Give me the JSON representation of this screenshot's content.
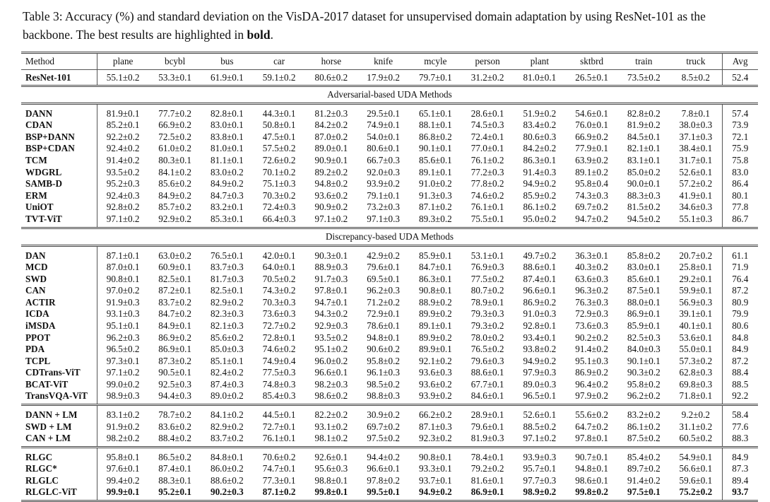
{
  "caption": {
    "text": "Table 3: Accuracy (%) and standard deviation on the VisDA-2017 dataset for unsupervised domain adaptation by using ResNet-101 as the backbone. The best results are highlighted in ",
    "bold_word": "bold",
    "end": "."
  },
  "table": {
    "headers": [
      "Method",
      "plane",
      "bcybl",
      "bus",
      "car",
      "horse",
      "knife",
      "mcyle",
      "person",
      "plant",
      "sktbrd",
      "train",
      "truck",
      "Avg"
    ],
    "groups": [
      {
        "title": null,
        "rows": [
          {
            "method": "ResNet-101",
            "values": [
              "55.1±0.2",
              "53.3±0.1",
              "61.9±0.1",
              "59.1±0.2",
              "80.6±0.2",
              "17.9±0.2",
              "79.7±0.1",
              "31.2±0.2",
              "81.0±0.1",
              "26.5±0.1",
              "73.5±0.2",
              "8.5±0.2"
            ],
            "avg": "52.4"
          }
        ]
      },
      {
        "title": "Adversarial-based UDA Methods",
        "rows": [
          {
            "method": "DANN",
            "values": [
              "81.9±0.1",
              "77.7±0.2",
              "82.8±0.1",
              "44.3±0.1",
              "81.2±0.3",
              "29.5±0.1",
              "65.1±0.1",
              "28.6±0.1",
              "51.9±0.2",
              "54.6±0.1",
              "82.8±0.2",
              "7.8±0.1"
            ],
            "avg": "57.4"
          },
          {
            "method": "CDAN",
            "values": [
              "85.2±0.1",
              "66.9±0.2",
              "83.0±0.1",
              "50.8±0.1",
              "84.2±0.2",
              "74.9±0.1",
              "88.1±0.1",
              "74.5±0.3",
              "83.4±0.2",
              "76.0±0.1",
              "81.9±0.2",
              "38.0±0.3"
            ],
            "avg": "73.9"
          },
          {
            "method": "BSP+DANN",
            "values": [
              "92.2±0.2",
              "72.5±0.2",
              "83.8±0.1",
              "47.5±0.1",
              "87.0±0.2",
              "54.0±0.1",
              "86.8±0.2",
              "72.4±0.1",
              "80.6±0.3",
              "66.9±0.2",
              "84.5±0.1",
              "37.1±0.3"
            ],
            "avg": "72.1"
          },
          {
            "method": "BSP+CDAN",
            "values": [
              "92.4±0.2",
              "61.0±0.2",
              "81.0±0.1",
              "57.5±0.2",
              "89.0±0.1",
              "80.6±0.1",
              "90.1±0.1",
              "77.0±0.1",
              "84.2±0.2",
              "77.9±0.1",
              "82.1±0.1",
              "38.4±0.1"
            ],
            "avg": "75.9"
          },
          {
            "method": "TCM",
            "values": [
              "91.4±0.2",
              "80.3±0.1",
              "81.1±0.1",
              "72.6±0.2",
              "90.9±0.1",
              "66.7±0.3",
              "85.6±0.1",
              "76.1±0.2",
              "86.3±0.1",
              "63.9±0.2",
              "83.1±0.1",
              "31.7±0.1"
            ],
            "avg": "75.8"
          },
          {
            "method": "WDGRL",
            "values": [
              "93.5±0.2",
              "84.1±0.2",
              "83.0±0.2",
              "70.1±0.2",
              "89.2±0.2",
              "92.0±0.3",
              "89.1±0.1",
              "77.2±0.3",
              "91.4±0.3",
              "89.1±0.2",
              "85.0±0.2",
              "52.6±0.1"
            ],
            "avg": "83.0"
          },
          {
            "method": "SAMB-D",
            "values": [
              "95.2±0.3",
              "85.6±0.2",
              "84.9±0.2",
              "75.1±0.3",
              "94.8±0.2",
              "93.9±0.2",
              "91.0±0.2",
              "77.8±0.2",
              "94.9±0.2",
              "95.8±0.4",
              "90.0±0.1",
              "57.2±0.2"
            ],
            "avg": "86.4"
          },
          {
            "method": "ERM",
            "values": [
              "92.4±0.3",
              "84.9±0.2",
              "84.7±0.3",
              "70.3±0.2",
              "93.6±0.2",
              "79.1±0.1",
              "91.3±0.3",
              "74.6±0.2",
              "85.9±0.2",
              "74.3±0.3",
              "88.3±0.3",
              "41.9±0.1"
            ],
            "avg": "80.1"
          },
          {
            "method": "UniOT",
            "values": [
              "92.8±0.2",
              "85.7±0.2",
              "83.2±0.1",
              "72.4±0.3",
              "90.9±0.2",
              "73.2±0.3",
              "87.1±0.2",
              "76.1±0.1",
              "86.1±0.2",
              "69.7±0.2",
              "81.5±0.2",
              "34.6±0.3"
            ],
            "avg": "77.8"
          },
          {
            "method": "TVT-ViT",
            "values": [
              "97.1±0.2",
              "92.9±0.2",
              "85.3±0.1",
              "66.4±0.3",
              "97.1±0.2",
              "97.1±0.3",
              "89.3±0.2",
              "75.5±0.1",
              "95.0±0.2",
              "94.7±0.2",
              "94.5±0.2",
              "55.1±0.3"
            ],
            "avg": "86.7"
          }
        ]
      },
      {
        "title": "Discrepancy-based UDA Methods",
        "rows": [
          {
            "method": "DAN",
            "values": [
              "87.1±0.1",
              "63.0±0.2",
              "76.5±0.1",
              "42.0±0.1",
              "90.3±0.1",
              "42.9±0.2",
              "85.9±0.1",
              "53.1±0.1",
              "49.7±0.2",
              "36.3±0.1",
              "85.8±0.2",
              "20.7±0.2"
            ],
            "avg": "61.1"
          },
          {
            "method": "MCD",
            "values": [
              "87.0±0.1",
              "60.9±0.1",
              "83.7±0.3",
              "64.0±0.1",
              "88.9±0.3",
              "79.6±0.1",
              "84.7±0.1",
              "76.9±0.3",
              "88.6±0.1",
              "40.3±0.2",
              "83.0±0.1",
              "25.8±0.1"
            ],
            "avg": "71.9"
          },
          {
            "method": "SWD",
            "values": [
              "90.8±0.1",
              "82.5±0.1",
              "81.7±0.3",
              "70.5±0.2",
              "91.7±0.3",
              "69.5±0.1",
              "86.3±0.1",
              "77.5±0.2",
              "87.4±0.1",
              "63.6±0.3",
              "85.6±0.1",
              "29.2±0.1"
            ],
            "avg": "76.4"
          },
          {
            "method": "CAN",
            "values": [
              "97.0±0.2",
              "87.2±0.1",
              "82.5±0.1",
              "74.3±0.2",
              "97.8±0.1",
              "96.2±0.3",
              "90.8±0.1",
              "80.7±0.2",
              "96.6±0.1",
              "96.3±0.2",
              "87.5±0.1",
              "59.9±0.1"
            ],
            "avg": "87.2"
          },
          {
            "method": "ACTIR",
            "values": [
              "91.9±0.3",
              "83.7±0.2",
              "82.9±0.2",
              "70.3±0.3",
              "94.7±0.1",
              "71.2±0.2",
              "88.9±0.2",
              "78.9±0.1",
              "86.9±0.2",
              "76.3±0.3",
              "88.0±0.1",
              "56.9±0.3"
            ],
            "avg": "80.9"
          },
          {
            "method": "ICDA",
            "values": [
              "93.1±0.3",
              "84.7±0.2",
              "82.3±0.3",
              "73.6±0.3",
              "94.3±0.2",
              "72.9±0.1",
              "89.9±0.2",
              "79.3±0.3",
              "91.0±0.3",
              "72.9±0.3",
              "86.9±0.1",
              "39.1±0.1"
            ],
            "avg": "79.9"
          },
          {
            "method": "iMSDA",
            "values": [
              "95.1±0.1",
              "84.9±0.1",
              "82.1±0.3",
              "72.7±0.2",
              "92.9±0.3",
              "78.6±0.1",
              "89.1±0.1",
              "79.3±0.2",
              "92.8±0.1",
              "73.6±0.3",
              "85.9±0.1",
              "40.1±0.1"
            ],
            "avg": "80.6"
          },
          {
            "method": "PPOT",
            "values": [
              "96.2±0.3",
              "86.9±0.2",
              "85.6±0.2",
              "72.8±0.1",
              "93.5±0.2",
              "94.8±0.1",
              "89.9±0.2",
              "78.0±0.2",
              "93.4±0.1",
              "90.2±0.2",
              "82.5±0.3",
              "53.6±0.1"
            ],
            "avg": "84.8"
          },
          {
            "method": "PDA",
            "values": [
              "96.5±0.2",
              "86.9±0.1",
              "85.0±0.3",
              "74.6±0.2",
              "95.1±0.2",
              "90.6±0.2",
              "89.9±0.1",
              "76.5±0.2",
              "93.8±0.2",
              "91.4±0.2",
              "84.0±0.3",
              "55.0±0.1"
            ],
            "avg": "84.9"
          },
          {
            "method": "TCPL",
            "values": [
              "97.3±0.1",
              "87.3±0.2",
              "85.1±0.1",
              "74.9±0.4",
              "96.0±0.2",
              "95.8±0.2",
              "92.1±0.2",
              "79.6±0.3",
              "94.9±0.2",
              "95.1±0.3",
              "90.1±0.1",
              "57.3±0.2"
            ],
            "avg": "87.2"
          },
          {
            "method": "CDTrans-ViT",
            "values": [
              "97.1±0.2",
              "90.5±0.1",
              "82.4±0.2",
              "77.5±0.3",
              "96.6±0.1",
              "96.1±0.3",
              "93.6±0.3",
              "88.6±0.1",
              "97.9±0.3",
              "86.9±0.2",
              "90.3±0.2",
              "62.8±0.3"
            ],
            "avg": "88.4"
          },
          {
            "method": "BCAT-ViT",
            "values": [
              "99.0±0.2",
              "92.5±0.3",
              "87.4±0.3",
              "74.8±0.3",
              "98.2±0.3",
              "98.5±0.2",
              "93.6±0.2",
              "67.7±0.1",
              "89.0±0.3",
              "96.4±0.2",
              "95.8±0.2",
              "69.8±0.3"
            ],
            "avg": "88.5"
          },
          {
            "method": "TransVQA-ViT",
            "values": [
              "98.9±0.3",
              "94.4±0.3",
              "89.0±0.2",
              "85.4±0.3",
              "98.6±0.2",
              "98.8±0.3",
              "93.9±0.2",
              "84.6±0.1",
              "96.5±0.1",
              "97.9±0.2",
              "96.2±0.2",
              "71.8±0.1"
            ],
            "avg": "92.2"
          }
        ]
      },
      {
        "title": null,
        "rows": [
          {
            "method": "DANN + LM",
            "values": [
              "83.1±0.2",
              "78.7±0.2",
              "84.1±0.2",
              "44.5±0.1",
              "82.2±0.2",
              "30.9±0.2",
              "66.2±0.2",
              "28.9±0.1",
              "52.6±0.1",
              "55.6±0.2",
              "83.2±0.2",
              "9.2±0.2"
            ],
            "avg": "58.4"
          },
          {
            "method": "SWD + LM",
            "values": [
              "91.9±0.2",
              "83.6±0.2",
              "82.9±0.2",
              "72.7±0.1",
              "93.1±0.2",
              "69.7±0.2",
              "87.1±0.3",
              "79.6±0.1",
              "88.5±0.2",
              "64.7±0.2",
              "86.1±0.2",
              "31.1±0.2"
            ],
            "avg": "77.6"
          },
          {
            "method": "CAN + LM",
            "values": [
              "98.2±0.2",
              "88.4±0.2",
              "83.7±0.2",
              "76.1±0.1",
              "98.1±0.2",
              "97.5±0.2",
              "92.3±0.2",
              "81.9±0.3",
              "97.1±0.2",
              "97.8±0.1",
              "87.5±0.2",
              "60.5±0.2"
            ],
            "avg": "88.3"
          }
        ]
      },
      {
        "title": null,
        "rows": [
          {
            "method": "RLGC",
            "values": [
              "95.8±0.1",
              "86.5±0.2",
              "84.8±0.1",
              "70.6±0.2",
              "92.6±0.1",
              "94.4±0.2",
              "90.8±0.1",
              "78.4±0.1",
              "93.9±0.3",
              "90.7±0.1",
              "85.4±0.2",
              "54.9±0.1"
            ],
            "avg": "84.9"
          },
          {
            "method": "RLGC*",
            "values": [
              "97.6±0.1",
              "87.4±0.1",
              "86.0±0.2",
              "74.7±0.1",
              "95.6±0.3",
              "96.6±0.1",
              "93.3±0.1",
              "79.2±0.2",
              "95.7±0.1",
              "94.8±0.1",
              "89.7±0.2",
              "56.6±0.1"
            ],
            "avg": "87.3"
          },
          {
            "method": "RLGLC",
            "values": [
              "99.4±0.2",
              "88.3±0.1",
              "88.6±0.2",
              "77.3±0.1",
              "98.8±0.1",
              "97.8±0.2",
              "93.7±0.1",
              "81.6±0.1",
              "97.7±0.3",
              "98.6±0.1",
              "91.4±0.2",
              "59.6±0.1"
            ],
            "avg": "89.4"
          },
          {
            "method": "RLGLC-ViT",
            "values": [
              "99.9±0.1",
              "95.2±0.1",
              "90.2±0.3",
              "87.1±0.2",
              "99.8±0.1",
              "99.5±0.1",
              "94.9±0.2",
              "86.9±0.1",
              "98.9±0.2",
              "99.8±0.2",
              "97.5±0.1",
              "75.2±0.2"
            ],
            "avg": "93.7",
            "bold": true
          }
        ]
      }
    ]
  }
}
